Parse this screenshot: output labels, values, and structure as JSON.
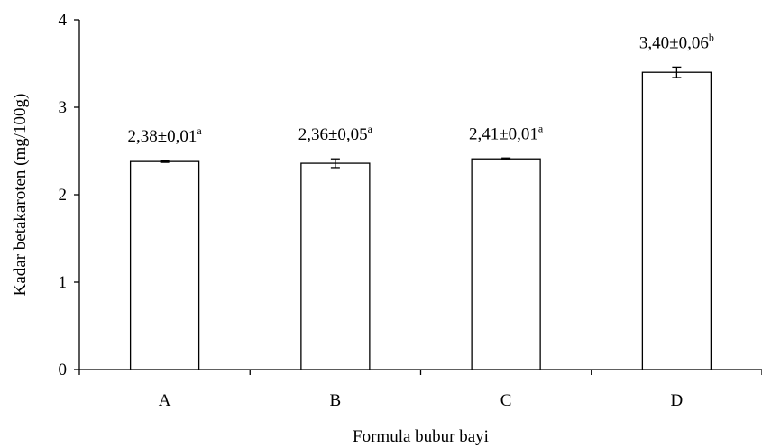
{
  "chart_data": {
    "type": "bar",
    "title": "",
    "xlabel": "Formula bubur bayi",
    "ylabel": "Kadar betakaroten (mg/100g)",
    "ylim": [
      0,
      4
    ],
    "yticks": [
      "0",
      "1",
      "2",
      "3",
      "4"
    ],
    "grid": false,
    "categories": [
      "A",
      "B",
      "C",
      "D"
    ],
    "values": [
      2.38,
      2.36,
      2.41,
      3.4
    ],
    "errors": [
      0.01,
      0.05,
      0.01,
      0.06
    ],
    "value_labels": [
      "2,38±0,01",
      "2,36±0,05",
      "2,41±0,01",
      "3,40±0,06"
    ],
    "significance_letters": [
      "a",
      "a",
      "a",
      "b"
    ],
    "colors": {
      "bar_fill": "#ffffff",
      "bar_stroke": "#000000",
      "axis": "#000000"
    }
  }
}
